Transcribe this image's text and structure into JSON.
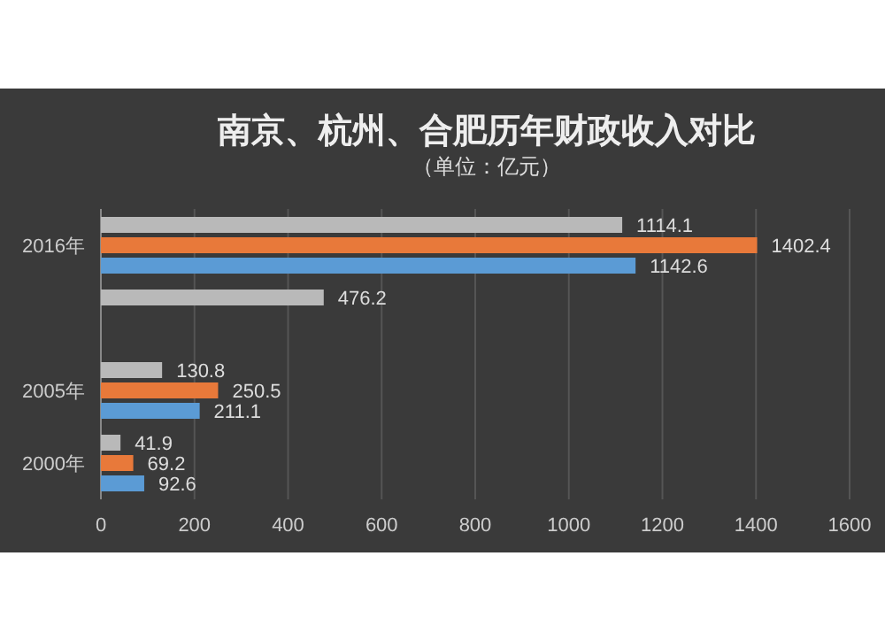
{
  "chart_data": {
    "type": "bar",
    "orientation": "horizontal",
    "title": "南京、杭州、合肥历年财政收入对比",
    "subtitle": "（单位：亿元）",
    "categories": [
      "2016年",
      null,
      "2005年",
      "2000年"
    ],
    "series": [
      {
        "color": "#b9b9b9",
        "values": [
          1114.1,
          476.2,
          130.8,
          41.9
        ]
      },
      {
        "color": "#e8793a",
        "values": [
          1402.4,
          null,
          250.5,
          69.2
        ]
      },
      {
        "color": "#5b9bd5",
        "values": [
          1142.6,
          null,
          211.1,
          92.6
        ]
      }
    ],
    "data_labels": true,
    "xlim": [
      0,
      1600
    ],
    "xticks": [
      0,
      200,
      400,
      600,
      800,
      1000,
      1200,
      1400,
      1600
    ],
    "grid": "x"
  }
}
